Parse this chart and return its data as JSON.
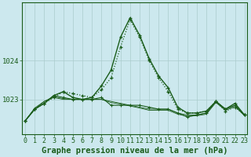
{
  "background_color": "#cce8ee",
  "grid_color": "#aacccc",
  "line_color": "#1a5c1a",
  "title": "Graphe pression niveau de la mer (hPa)",
  "ylabel_ticks": [
    1023,
    1024
  ],
  "x_labels": [
    "0",
    "1",
    "2",
    "3",
    "4",
    "5",
    "6",
    "7",
    "8",
    "9",
    "10",
    "11",
    "12",
    "13",
    "14",
    "15",
    "16",
    "17",
    "18",
    "19",
    "20",
    "21",
    "22",
    "23"
  ],
  "series_dotted": [
    1022.45,
    1022.75,
    1022.9,
    1023.05,
    1023.2,
    1023.15,
    1023.1,
    1023.05,
    1023.25,
    1023.55,
    1024.35,
    1025.05,
    1024.6,
    1024.0,
    1023.55,
    1023.2,
    1022.75,
    1022.65,
    1022.65,
    1022.7,
    1022.95,
    1022.7,
    1022.8,
    1022.6
  ],
  "series_main": [
    1022.45,
    1022.75,
    1022.9,
    1023.1,
    1023.05,
    1023.0,
    1023.0,
    1023.0,
    1023.05,
    1022.85,
    1022.85,
    1022.85,
    1022.85,
    1022.8,
    1022.75,
    1022.75,
    1022.65,
    1022.55,
    1022.6,
    1022.65,
    1022.95,
    1022.75,
    1022.85,
    1022.6
  ],
  "series_flat1": [
    1022.45,
    1022.75,
    1022.95,
    1023.05,
    1023.0,
    1023.0,
    1023.0,
    1023.0,
    1023.0,
    1022.95,
    1022.9,
    1022.85,
    1022.8,
    1022.75,
    1022.75,
    1022.75,
    1022.65,
    1022.6,
    1022.6,
    1022.65,
    1022.95,
    1022.75,
    1022.85,
    1022.6
  ],
  "series_flat2": [
    1022.45,
    1022.78,
    1022.95,
    1023.07,
    1023.02,
    1023.0,
    1023.0,
    1023.0,
    1023.0,
    1022.92,
    1022.88,
    1022.83,
    1022.78,
    1022.72,
    1022.72,
    1022.72,
    1022.62,
    1022.57,
    1022.58,
    1022.62,
    1022.92,
    1022.72,
    1022.82,
    1022.58
  ],
  "series_peak": [
    1022.45,
    1022.75,
    1022.9,
    1023.1,
    1023.2,
    1023.05,
    1023.0,
    1023.05,
    1023.35,
    1023.75,
    1024.6,
    1025.1,
    1024.65,
    1024.05,
    1023.6,
    1023.3,
    1022.8,
    1022.65,
    1022.65,
    1022.7,
    1022.95,
    1022.75,
    1022.9,
    1022.6
  ],
  "ylim_min": 1022.1,
  "ylim_max": 1025.5,
  "title_fontsize": 7.5,
  "tick_fontsize": 6
}
